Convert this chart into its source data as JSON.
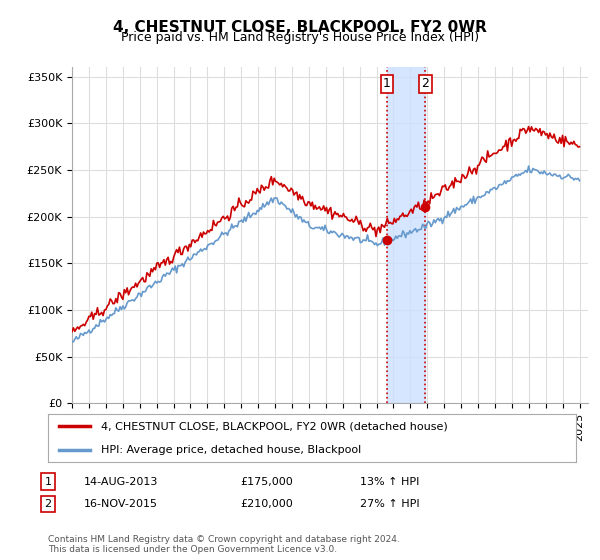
{
  "title": "4, CHESTNUT CLOSE, BLACKPOOL, FY2 0WR",
  "subtitle": "Price paid vs. HM Land Registry's House Price Index (HPI)",
  "legend_line1": "4, CHESTNUT CLOSE, BLACKPOOL, FY2 0WR (detached house)",
  "legend_line2": "HPI: Average price, detached house, Blackpool",
  "table_rows": [
    {
      "num": "1",
      "date": "14-AUG-2013",
      "price": "£175,000",
      "hpi": "13% ↑ HPI"
    },
    {
      "num": "2",
      "date": "16-NOV-2015",
      "price": "£210,000",
      "hpi": "27% ↑ HPI"
    }
  ],
  "footnote": "Contains HM Land Registry data © Crown copyright and database right 2024.\nThis data is licensed under the Open Government Licence v3.0.",
  "sale1_year": 2013.62,
  "sale1_price": 175000,
  "sale2_year": 2015.88,
  "sale2_price": 210000,
  "price_line_color": "#cc0000",
  "hpi_line_color": "#6699cc",
  "highlight_color": "#cce0ff",
  "sale_dot_color": "#cc0000",
  "ylim_min": 0,
  "ylim_max": 360000,
  "ytick_step": 50000,
  "xmin": 1995,
  "xmax": 2025.5,
  "background_color": "#ffffff",
  "grid_color": "#dddddd"
}
